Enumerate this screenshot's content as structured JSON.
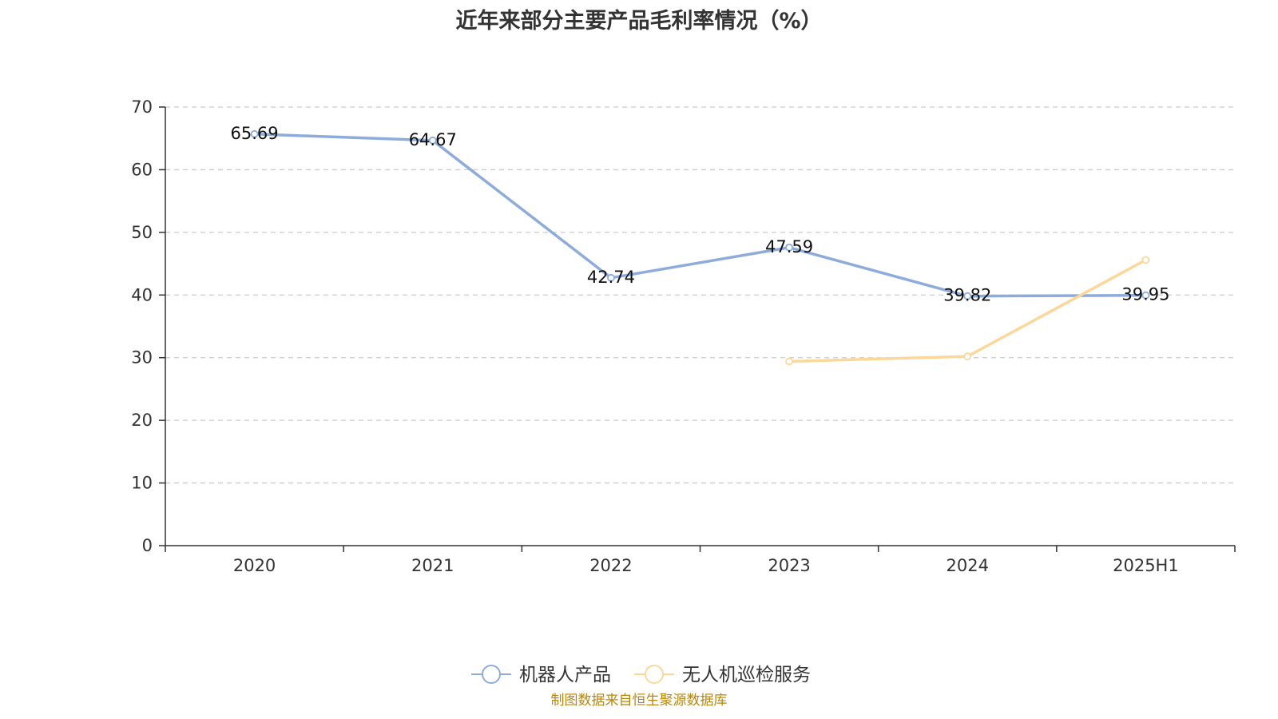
{
  "chart_data": {
    "type": "line",
    "title": "近年来部分主要产品毛利率情况（%）",
    "categories": [
      "2020",
      "2021",
      "2022",
      "2023",
      "2024",
      "2025H1"
    ],
    "ylim": [
      0,
      70
    ],
    "yticks": [
      0,
      10,
      20,
      30,
      40,
      50,
      60,
      70
    ],
    "grid": true,
    "legend_position": "bottom-center",
    "series": [
      {
        "name": "机器人产品",
        "color": "#8eacdb",
        "values": [
          65.69,
          64.67,
          42.74,
          47.59,
          39.82,
          39.95
        ],
        "labels": [
          "65.69",
          "64.67",
          "42.74",
          "47.59",
          "39.82",
          "39.95"
        ]
      },
      {
        "name": "无人机巡检服务",
        "color": "#fbd89a",
        "values": [
          null,
          null,
          null,
          29.4,
          30.2,
          45.6
        ],
        "labels": []
      }
    ]
  },
  "source": "制图数据来自恒生聚源数据库"
}
